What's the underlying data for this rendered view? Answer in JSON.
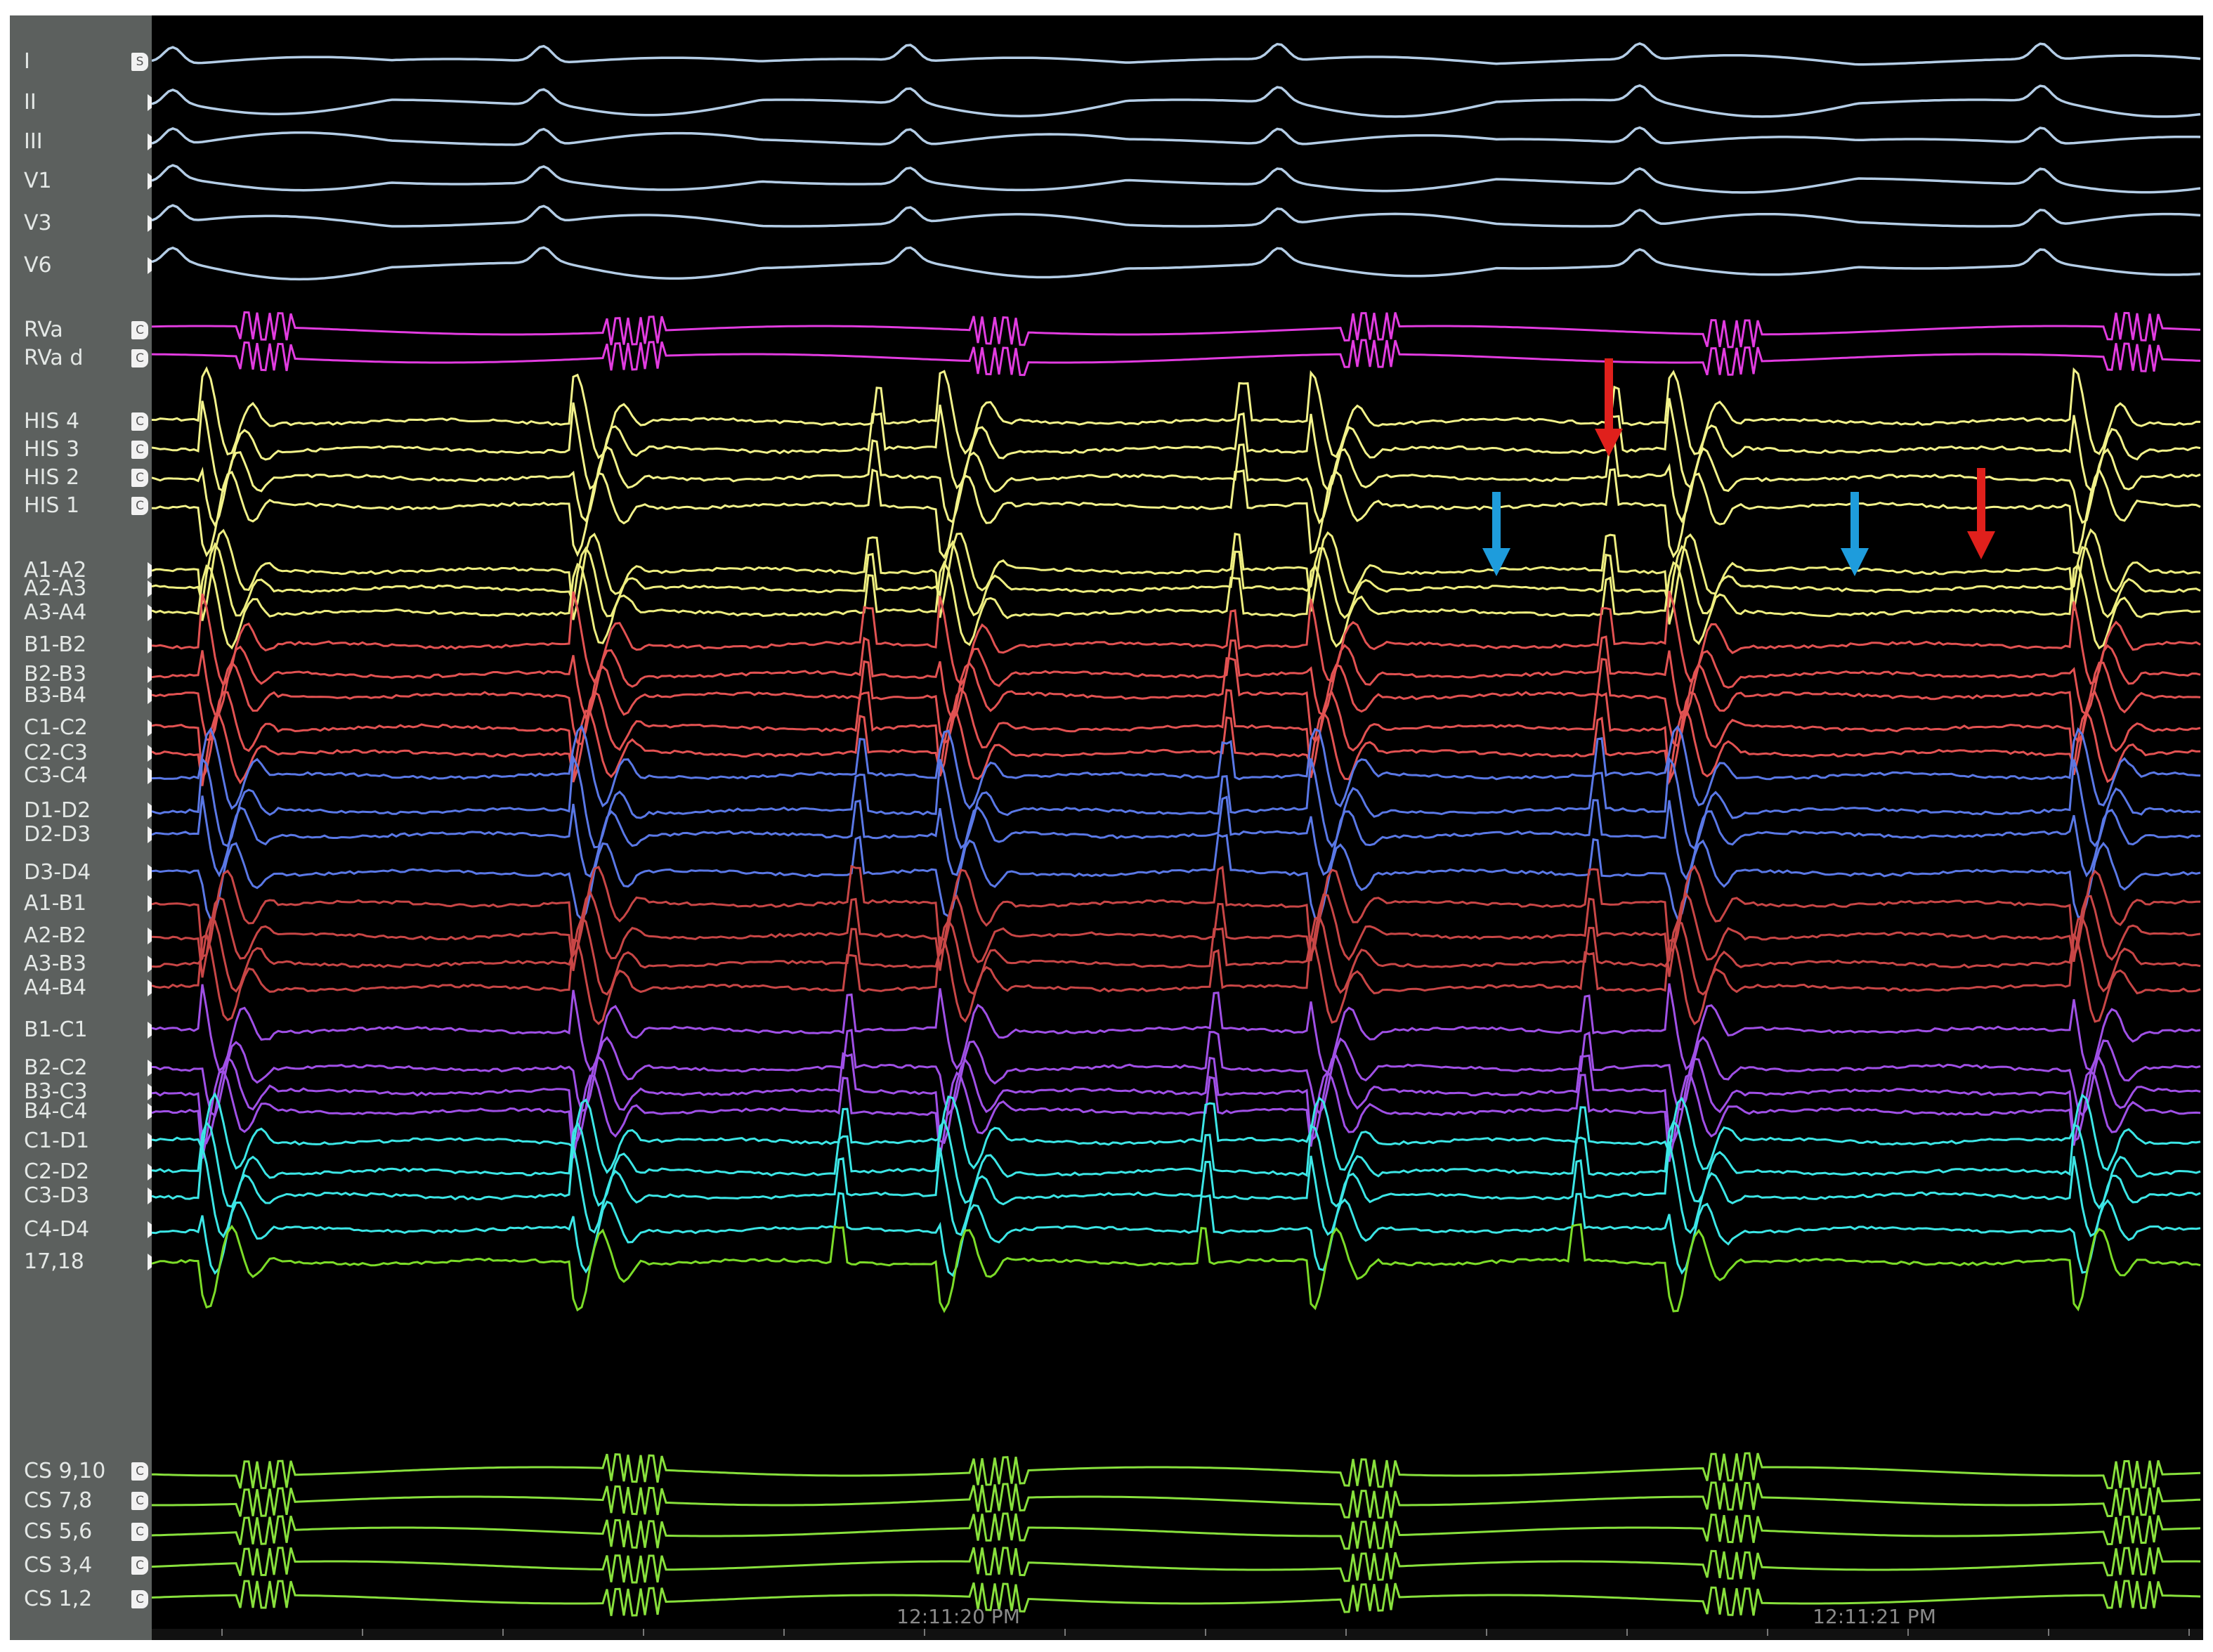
{
  "channels": [
    {
      "label": "I",
      "group": "surface",
      "btn": "S"
    },
    {
      "label": "II",
      "group": "surface",
      "btn": ""
    },
    {
      "label": "III",
      "group": "surface",
      "btn": ""
    },
    {
      "label": "V1",
      "group": "surface",
      "btn": ""
    },
    {
      "label": "V3",
      "group": "surface",
      "btn": ""
    },
    {
      "label": "V6",
      "group": "surface",
      "btn": ""
    },
    {
      "label": "RVa",
      "group": "rv",
      "btn": "C"
    },
    {
      "label": "RVa d",
      "group": "rv",
      "btn": "C"
    },
    {
      "label": "HIS 4",
      "group": "his",
      "btn": "C"
    },
    {
      "label": "HIS 3",
      "group": "his",
      "btn": "C"
    },
    {
      "label": "HIS 2",
      "group": "his",
      "btn": "C"
    },
    {
      "label": "HIS 1",
      "group": "his",
      "btn": "C"
    },
    {
      "label": "A1-A2",
      "group": "a",
      "btn": ""
    },
    {
      "label": "A2-A3",
      "group": "a",
      "btn": ""
    },
    {
      "label": "A3-A4",
      "group": "a",
      "btn": ""
    },
    {
      "label": "B1-B2",
      "group": "b",
      "btn": ""
    },
    {
      "label": "B2-B3",
      "group": "b",
      "btn": ""
    },
    {
      "label": "B3-B4",
      "group": "b",
      "btn": ""
    },
    {
      "label": "C1-C2",
      "group": "b",
      "btn": ""
    },
    {
      "label": "C2-C3",
      "group": "b",
      "btn": ""
    },
    {
      "label": "C3-C4",
      "group": "d",
      "btn": ""
    },
    {
      "label": "D1-D2",
      "group": "d",
      "btn": ""
    },
    {
      "label": "D2-D3",
      "group": "d",
      "btn": ""
    },
    {
      "label": "D3-D4",
      "group": "d",
      "btn": ""
    },
    {
      "label": "A1-B1",
      "group": "ab",
      "btn": ""
    },
    {
      "label": "A2-B2",
      "group": "ab",
      "btn": ""
    },
    {
      "label": "A3-B3",
      "group": "ab",
      "btn": ""
    },
    {
      "label": "A4-B4",
      "group": "ab",
      "btn": ""
    },
    {
      "label": "B1-C1",
      "group": "bc",
      "btn": ""
    },
    {
      "label": "B2-C2",
      "group": "bc",
      "btn": ""
    },
    {
      "label": "B3-C3",
      "group": "bc",
      "btn": ""
    },
    {
      "label": "B4-C4",
      "group": "bc",
      "btn": ""
    },
    {
      "label": "C1-D1",
      "group": "cd",
      "btn": ""
    },
    {
      "label": "C2-D2",
      "group": "cd",
      "btn": ""
    },
    {
      "label": "C3-D3",
      "group": "cd",
      "btn": ""
    },
    {
      "label": "C4-D4",
      "group": "cd",
      "btn": ""
    },
    {
      "label": "17,18",
      "group": "abl",
      "btn": ""
    },
    {
      "label": "CS 9,10",
      "group": "cs",
      "btn": "C"
    },
    {
      "label": "CS 7,8",
      "group": "cs",
      "btn": "C"
    },
    {
      "label": "CS 5,6",
      "group": "cs",
      "btn": "C"
    },
    {
      "label": "CS 3,4",
      "group": "cs",
      "btn": "C"
    },
    {
      "label": "CS 1,2",
      "group": "cs",
      "btn": "C"
    }
  ],
  "colors": {
    "surface": "#b4cde6",
    "rv": "#e23ce0",
    "his": "#f2f28a",
    "a": "#eeee80",
    "b": "#e25252",
    "d": "#5a78e6",
    "ab": "#c84646",
    "bc": "#a050e6",
    "cd": "#3ce6e6",
    "abl": "#7cdc28",
    "cs": "#88e03c",
    "arrow_red": "#e0201c",
    "arrow_blue": "#1e9cdc"
  },
  "timestamps": [
    "12:11:20 PM",
    "12:11:21 PM"
  ],
  "arrows": [
    {
      "color": "red",
      "name": "red-arrow-1"
    },
    {
      "color": "blue",
      "name": "blue-arrow-1"
    },
    {
      "color": "blue",
      "name": "blue-arrow-2"
    },
    {
      "color": "red",
      "name": "red-arrow-2"
    }
  ]
}
